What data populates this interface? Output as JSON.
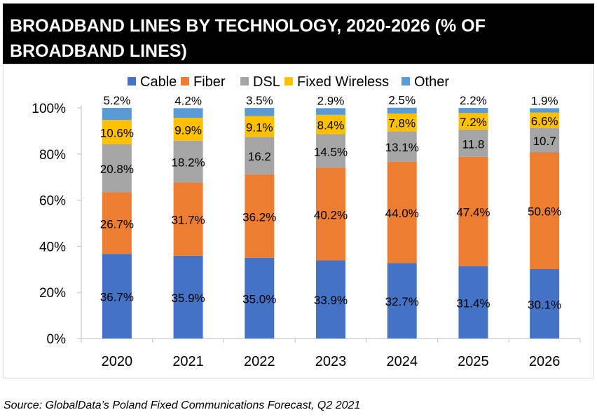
{
  "title": "BROADBAND LINES BY TECHNOLOGY, 2020-2026 (% OF BROADBAND LINES)",
  "source": "Source: GlobalData’s Poland Fixed Communications Forecast, Q2 2021",
  "chart_data": {
    "type": "bar",
    "stacked": true,
    "categories": [
      "2020",
      "2021",
      "2022",
      "2023",
      "2024",
      "2025",
      "2026"
    ],
    "series": [
      {
        "name": "Cable",
        "color": "#4472C4",
        "values": [
          36.7,
          35.9,
          35.0,
          33.9,
          32.7,
          31.4,
          30.1
        ],
        "labels": [
          "36.7%",
          "35.9%",
          "35.0%",
          "33.9%",
          "32.7%",
          "31.4%",
          "30.1%"
        ]
      },
      {
        "name": "Fiber",
        "color": "#ED7D31",
        "values": [
          26.7,
          31.7,
          36.2,
          40.2,
          44.0,
          47.4,
          50.6
        ],
        "labels": [
          "26.7%",
          "31.7%",
          "36.2%",
          "40.2%",
          "44.0%",
          "47.4%",
          "50.6%"
        ]
      },
      {
        "name": "DSL",
        "color": "#A5A5A5",
        "values": [
          20.8,
          18.2,
          16.2,
          14.5,
          13.1,
          11.8,
          10.7
        ],
        "labels": [
          "20.8%",
          "18.2%",
          "16.2",
          "14.5%",
          "13.1%",
          "11.8",
          "10.7"
        ]
      },
      {
        "name": "Fixed Wireless",
        "color": "#FFC000",
        "values": [
          10.6,
          9.9,
          9.1,
          8.4,
          7.8,
          7.2,
          6.6
        ],
        "labels": [
          "10.6%",
          "9.9%",
          "9.1%",
          "8.4%",
          "7.8%",
          "7.2%",
          "6.6%"
        ]
      },
      {
        "name": "Other",
        "color": "#5B9BD5",
        "values": [
          5.2,
          4.2,
          3.5,
          2.9,
          2.5,
          2.2,
          1.9
        ],
        "labels": [
          "5.2%",
          "4.2%",
          "3.5%",
          "2.9%",
          "2.5%",
          "2.2%",
          "1.9%"
        ]
      }
    ],
    "ylim": [
      0,
      100
    ],
    "yticks": [
      "0%",
      "20%",
      "40%",
      "60%",
      "80%",
      "100%"
    ],
    "grid": false,
    "legend_position": "top",
    "xlabel": "",
    "ylabel": ""
  }
}
